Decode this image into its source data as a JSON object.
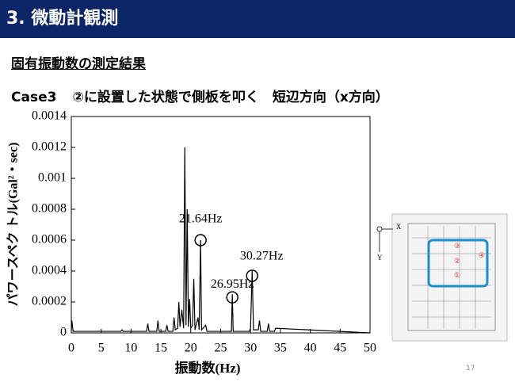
{
  "header": {
    "title": "3. 微動計観測"
  },
  "section_title": "固有振動数の測定結果",
  "case_label": "Case3",
  "case_description": "②に設置した状態で側板を叩く　短辺方向（x方向）",
  "chart_data": {
    "type": "line",
    "x_label": "振動数(Hz)",
    "y_label": "パワースペク トル(Gal²・sec)",
    "x": [
      0,
      0.1,
      0.3,
      8.3,
      8.5,
      8.7,
      12.6,
      12.8,
      13.0,
      14.3,
      14.5,
      14.7,
      15.8,
      16.0,
      16.2,
      17.0,
      17.2,
      17.4,
      17.8,
      18.0,
      18.2,
      18.5,
      18.8,
      19.0,
      19.2,
      19.4,
      19.6,
      19.8,
      20.0,
      20.3,
      20.5,
      20.7,
      21.2,
      21.4,
      21.64,
      21.8,
      22.5,
      22.7,
      23.0,
      26.8,
      26.95,
      27.1,
      29.8,
      30.0,
      30.27,
      30.5,
      31.3,
      31.5,
      31.7,
      32.8,
      33.0,
      33.2,
      34.0,
      34.2,
      50
    ],
    "series": [
      {
        "name": "power-spectrum",
        "color": "#000000",
        "values": [
          1e-05,
          8e-05,
          1e-05,
          1e-05,
          2e-05,
          1e-05,
          1e-05,
          6e-05,
          1e-05,
          1e-05,
          8e-05,
          1e-05,
          1e-05,
          5e-05,
          1e-05,
          1e-05,
          0.0001,
          2e-05,
          3e-05,
          0.0002,
          4e-05,
          0.00015,
          3e-05,
          0.0012,
          5e-05,
          0.0008,
          4e-05,
          0.00022,
          3e-05,
          5e-05,
          0.00035,
          2e-05,
          0.0001,
          2e-05,
          0.0006,
          2e-05,
          5e-05,
          1e-05,
          1e-05,
          1e-05,
          0.00025,
          1e-05,
          1e-05,
          3e-05,
          0.0004,
          2e-05,
          2e-05,
          8e-05,
          1e-05,
          1e-05,
          6e-05,
          1e-05,
          1e-05,
          3e-05,
          0
        ]
      }
    ],
    "xlim": [
      0,
      50
    ],
    "xticks": [
      0,
      5,
      10,
      15,
      20,
      25,
      30,
      35,
      40,
      45,
      50
    ],
    "ylim": [
      0,
      0.0014
    ],
    "yticks": [
      0,
      0.0002,
      0.0004,
      0.0006,
      0.0008,
      0.001,
      0.0012,
      0.0014
    ],
    "annotations": [
      {
        "text": "21.64Hz",
        "x": 21.64,
        "y": 0.0006
      },
      {
        "text": "26.95Hz",
        "x": 26.95,
        "y": 0.00023
      },
      {
        "text": "30.27Hz",
        "x": 30.27,
        "y": 0.00037
      }
    ]
  },
  "diagram": {
    "x_axis": "X",
    "y_axis": "Y",
    "labels": [
      "③",
      "②",
      "④",
      "①"
    ]
  },
  "page_number": "17"
}
